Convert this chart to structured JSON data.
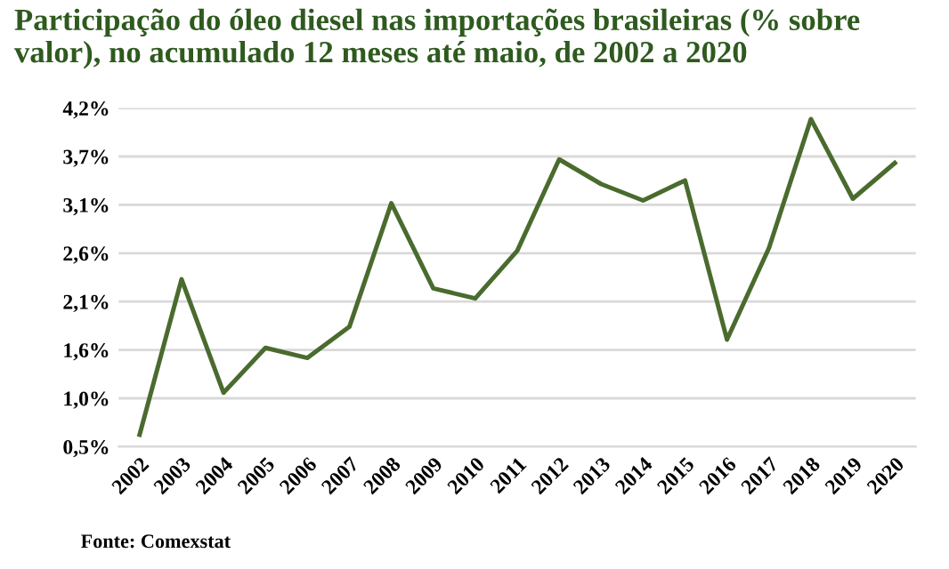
{
  "chart_data": {
    "type": "line",
    "title": "Participação do óleo diesel nas importações brasileiras (% sobre valor), no acumulado 12 meses até maio, de 2002 a 2020",
    "categories": [
      "2002",
      "2003",
      "2004",
      "2005",
      "2006",
      "2007",
      "2008",
      "2009",
      "2010",
      "2011",
      "2012",
      "2013",
      "2014",
      "2015",
      "2016",
      "2017",
      "2018",
      "2019",
      "2020"
    ],
    "series": [
      {
        "color": "#4a6b2e",
        "values": [
          0.63,
          2.33,
          1.09,
          1.58,
          1.47,
          1.81,
          3.16,
          2.23,
          2.12,
          2.64,
          3.64,
          3.37,
          3.19,
          3.41,
          1.67,
          2.67,
          4.08,
          3.21,
          3.6
        ]
      }
    ],
    "ylim": [
      0.5,
      4.2
    ],
    "yticks": [
      {
        "value": 0.5,
        "label": "0,5%"
      },
      {
        "value": 1.0286,
        "label": "1,0%"
      },
      {
        "value": 1.5571,
        "label": "1,6%"
      },
      {
        "value": 2.0857,
        "label": "2,1%"
      },
      {
        "value": 2.6143,
        "label": "2,6%"
      },
      {
        "value": 3.1429,
        "label": "3,1%"
      },
      {
        "value": 3.6714,
        "label": "3,7%"
      },
      {
        "value": 4.2,
        "label": "4,2%"
      }
    ],
    "grid": "y",
    "marker": "none",
    "line_style": "solid",
    "annotations": [
      "Fonte: Comexstat"
    ]
  }
}
